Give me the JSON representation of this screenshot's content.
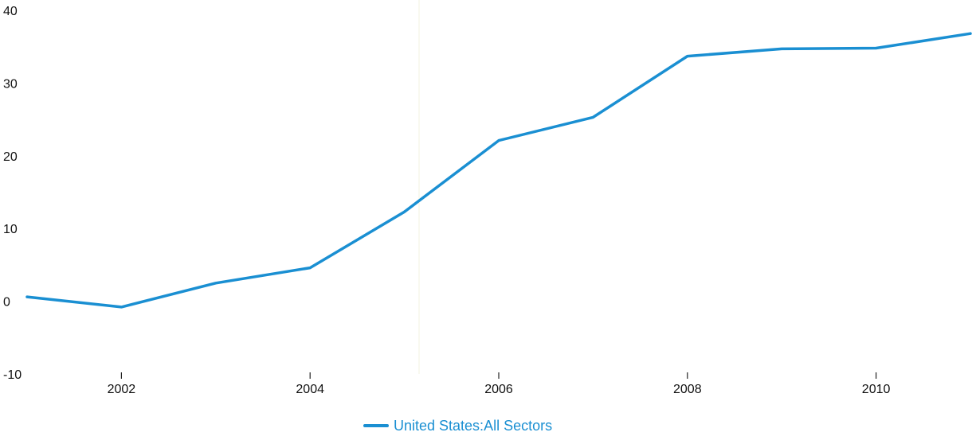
{
  "chart_data": {
    "type": "line",
    "x": [
      2001,
      2002,
      2003,
      2004,
      2005,
      2006,
      2007,
      2008,
      2009,
      2010,
      2011
    ],
    "series": [
      {
        "name": "United States:All Sectors",
        "values": [
          0.6,
          -0.8,
          2.5,
          4.6,
          12.3,
          22.1,
          25.3,
          33.7,
          34.7,
          34.8,
          36.8
        ],
        "color": "#1a8fd2"
      }
    ],
    "x_ticks": [
      2002,
      2004,
      2006,
      2008,
      2010
    ],
    "y_ticks": [
      -10,
      0,
      10,
      20,
      30,
      40
    ],
    "xlim": [
      2001,
      2011
    ],
    "ylim": [
      -10,
      40
    ],
    "title": "",
    "xlabel": "",
    "ylabel": "",
    "grid": false,
    "legend_position": "bottom-center"
  }
}
